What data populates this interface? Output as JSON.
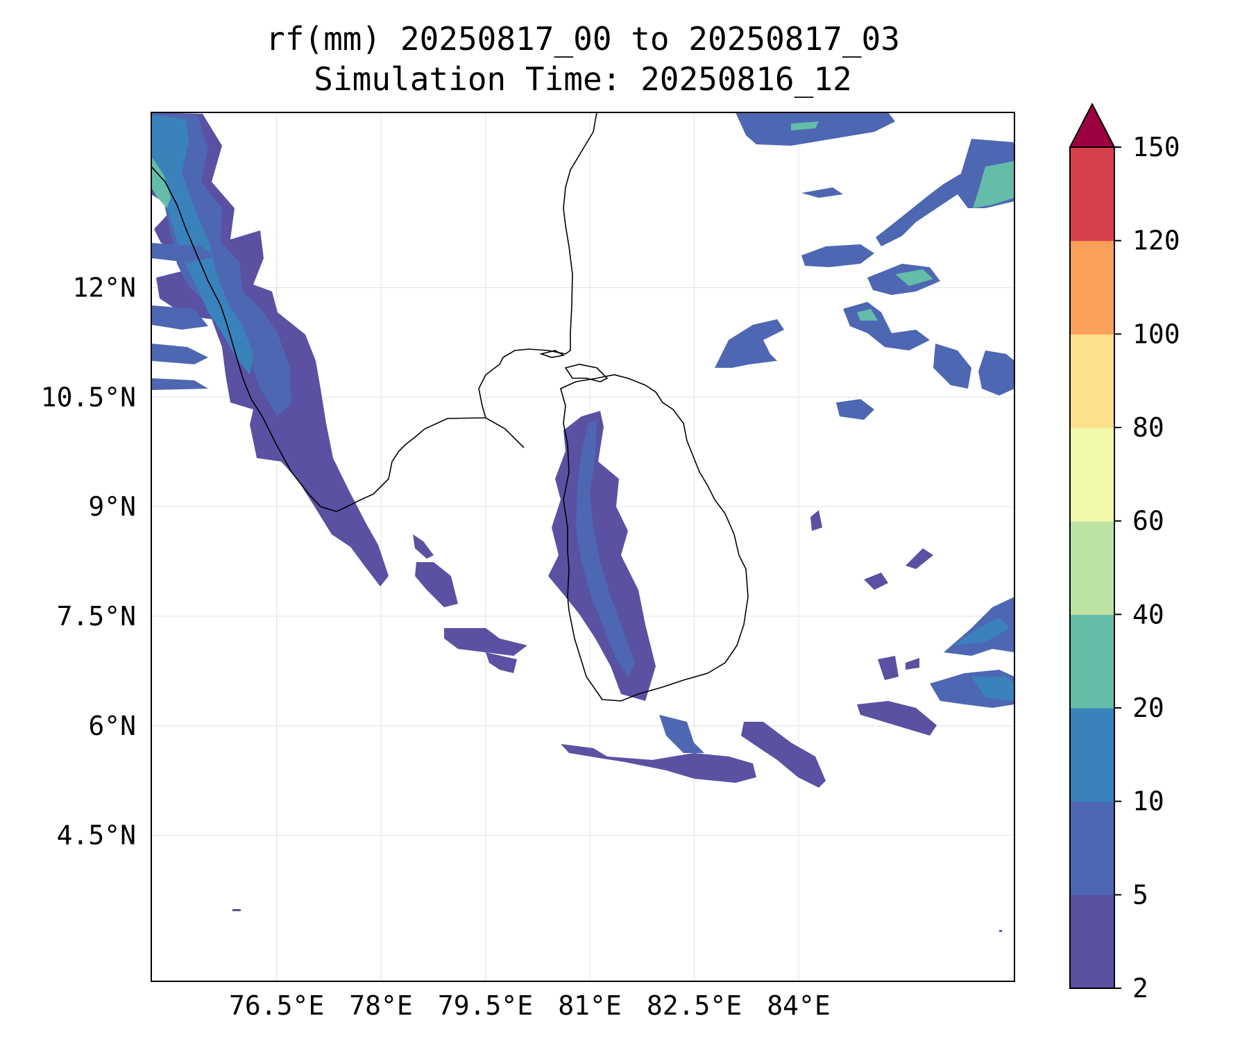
{
  "title": {
    "line1": "rf(mm) 20250817_00 to 20250817_03",
    "line2": "Simulation Time: 20250816_12"
  },
  "map": {
    "lon_range": [
      74.7,
      87.1
    ],
    "lat_range": [
      2.5,
      14.4
    ],
    "x_ticks": [
      {
        "value": 76.5,
        "label": "76.5°E"
      },
      {
        "value": 78.0,
        "label": "78°E"
      },
      {
        "value": 79.5,
        "label": "79.5°E"
      },
      {
        "value": 81.0,
        "label": "81°E"
      },
      {
        "value": 82.5,
        "label": "82.5°E"
      },
      {
        "value": 84.0,
        "label": "84°E"
      }
    ],
    "y_ticks": [
      {
        "value": 12.0,
        "label": "12°N"
      },
      {
        "value": 10.5,
        "label": "10.5°N"
      },
      {
        "value": 9.0,
        "label": "9°N"
      },
      {
        "value": 7.5,
        "label": "7.5°N"
      },
      {
        "value": 6.0,
        "label": "6°N"
      },
      {
        "value": 4.5,
        "label": "4.5°N"
      }
    ],
    "gridlines": true
  },
  "colorbar": {
    "orientation": "vertical",
    "placement": "right",
    "extend": "max",
    "levels": [
      {
        "value": 2,
        "label": "2"
      },
      {
        "value": 5,
        "label": "5"
      },
      {
        "value": 10,
        "label": "10"
      },
      {
        "value": 20,
        "label": "20"
      },
      {
        "value": 40,
        "label": "40"
      },
      {
        "value": 60,
        "label": "60"
      },
      {
        "value": 80,
        "label": "80"
      },
      {
        "value": 100,
        "label": "100"
      },
      {
        "value": 120,
        "label": "120"
      },
      {
        "value": 150,
        "label": "150"
      }
    ],
    "colors": [
      "#5a51a2",
      "#4e67b2",
      "#3a82bc",
      "#63bda9",
      "#bde3a2",
      "#f3f9aa",
      "#fce08b",
      "#f9a05a",
      "#d83f4c"
    ],
    "over_color": "#9e0142"
  }
}
